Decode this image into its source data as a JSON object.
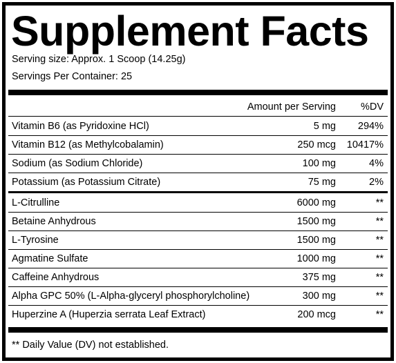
{
  "header": {
    "title": "Supplement Facts",
    "serving_size": "Serving size: Approx. 1 Scoop (14.25g)",
    "servings_per_container": "Servings Per Container: 25"
  },
  "table": {
    "columns": [
      "Amount per Serving",
      "%DV"
    ],
    "rows": [
      [
        "Vitamin B6 (as Pyridoxine HCl)",
        "5 mg",
        "294%"
      ],
      [
        "Vitamin B12 (as Methylcobalamin)",
        "250 mcg",
        "10417%"
      ],
      [
        "Sodium (as Sodium Chloride)",
        "100 mg",
        "4%"
      ],
      [
        "Potassium (as Potassium Citrate)",
        "75 mg",
        "2%"
      ],
      [
        "L-Citrulline",
        "6000 mg",
        "**"
      ],
      [
        "Betaine Anhydrous",
        "1500 mg",
        "**"
      ],
      [
        "L-Tyrosine",
        "1500 mg",
        "**"
      ],
      [
        "Agmatine Sulfate",
        "1000 mg",
        "**"
      ],
      [
        "Caffeine Anhydrous",
        "375 mg",
        "**"
      ],
      [
        "Alpha GPC 50% (L-Alpha-glyceryl phosphorylcholine)",
        "300 mg",
        "**"
      ],
      [
        "Huperzine A (Huperzia serrata Leaf Extract)",
        "200 mcg",
        "**"
      ]
    ]
  },
  "footnote": "** Daily Value (DV) not established."
}
